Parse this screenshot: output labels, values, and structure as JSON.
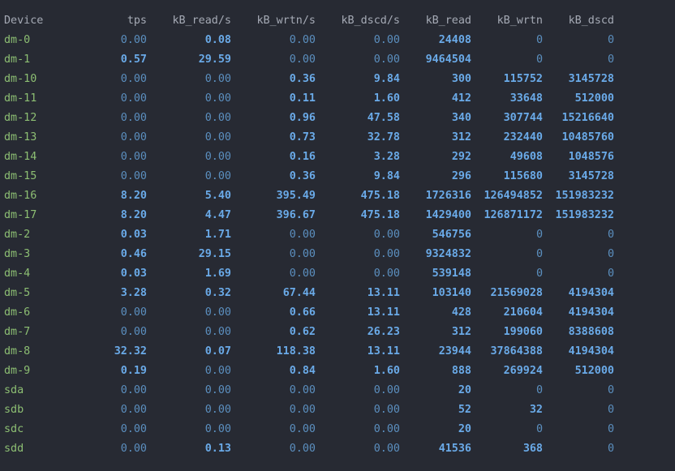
{
  "colors": {
    "background": "#272a33",
    "header": "#a5aab5",
    "device": "#8dbf73",
    "number": "#5b93c8",
    "number_highlight": "#6aaae8"
  },
  "headers": [
    "Device",
    "tps",
    "kB_read/s",
    "kB_wrtn/s",
    "kB_dscd/s",
    "kB_read",
    "kB_wrtn",
    "kB_dscd"
  ],
  "rows": [
    {
      "device": "dm-0",
      "cols": [
        "0.00",
        "0.08",
        "0.00",
        "0.00",
        "24408",
        "0",
        "0"
      ]
    },
    {
      "device": "dm-1",
      "cols": [
        "0.57",
        "29.59",
        "0.00",
        "0.00",
        "9464504",
        "0",
        "0"
      ]
    },
    {
      "device": "dm-10",
      "cols": [
        "0.00",
        "0.00",
        "0.36",
        "9.84",
        "300",
        "115752",
        "3145728"
      ]
    },
    {
      "device": "dm-11",
      "cols": [
        "0.00",
        "0.00",
        "0.11",
        "1.60",
        "412",
        "33648",
        "512000"
      ]
    },
    {
      "device": "dm-12",
      "cols": [
        "0.00",
        "0.00",
        "0.96",
        "47.58",
        "340",
        "307744",
        "15216640"
      ]
    },
    {
      "device": "dm-13",
      "cols": [
        "0.00",
        "0.00",
        "0.73",
        "32.78",
        "312",
        "232440",
        "10485760"
      ]
    },
    {
      "device": "dm-14",
      "cols": [
        "0.00",
        "0.00",
        "0.16",
        "3.28",
        "292",
        "49608",
        "1048576"
      ]
    },
    {
      "device": "dm-15",
      "cols": [
        "0.00",
        "0.00",
        "0.36",
        "9.84",
        "296",
        "115680",
        "3145728"
      ]
    },
    {
      "device": "dm-16",
      "cols": [
        "8.20",
        "5.40",
        "395.49",
        "475.18",
        "1726316",
        "126494852",
        "151983232"
      ]
    },
    {
      "device": "dm-17",
      "cols": [
        "8.20",
        "4.47",
        "396.67",
        "475.18",
        "1429400",
        "126871172",
        "151983232"
      ]
    },
    {
      "device": "dm-2",
      "cols": [
        "0.03",
        "1.71",
        "0.00",
        "0.00",
        "546756",
        "0",
        "0"
      ]
    },
    {
      "device": "dm-3",
      "cols": [
        "0.46",
        "29.15",
        "0.00",
        "0.00",
        "9324832",
        "0",
        "0"
      ]
    },
    {
      "device": "dm-4",
      "cols": [
        "0.03",
        "1.69",
        "0.00",
        "0.00",
        "539148",
        "0",
        "0"
      ]
    },
    {
      "device": "dm-5",
      "cols": [
        "3.28",
        "0.32",
        "67.44",
        "13.11",
        "103140",
        "21569028",
        "4194304"
      ]
    },
    {
      "device": "dm-6",
      "cols": [
        "0.00",
        "0.00",
        "0.66",
        "13.11",
        "428",
        "210604",
        "4194304"
      ]
    },
    {
      "device": "dm-7",
      "cols": [
        "0.00",
        "0.00",
        "0.62",
        "26.23",
        "312",
        "199060",
        "8388608"
      ]
    },
    {
      "device": "dm-8",
      "cols": [
        "32.32",
        "0.07",
        "118.38",
        "13.11",
        "23944",
        "37864388",
        "4194304"
      ]
    },
    {
      "device": "dm-9",
      "cols": [
        "0.19",
        "0.00",
        "0.84",
        "1.60",
        "888",
        "269924",
        "512000"
      ]
    },
    {
      "device": "sda",
      "cols": [
        "0.00",
        "0.00",
        "0.00",
        "0.00",
        "20",
        "0",
        "0"
      ]
    },
    {
      "device": "sdb",
      "cols": [
        "0.00",
        "0.00",
        "0.00",
        "0.00",
        "52",
        "32",
        "0"
      ]
    },
    {
      "device": "sdc",
      "cols": [
        "0.00",
        "0.00",
        "0.00",
        "0.00",
        "20",
        "0",
        "0"
      ]
    },
    {
      "device": "sdd",
      "cols": [
        "0.00",
        "0.13",
        "0.00",
        "0.00",
        "41536",
        "368",
        "0"
      ]
    }
  ]
}
